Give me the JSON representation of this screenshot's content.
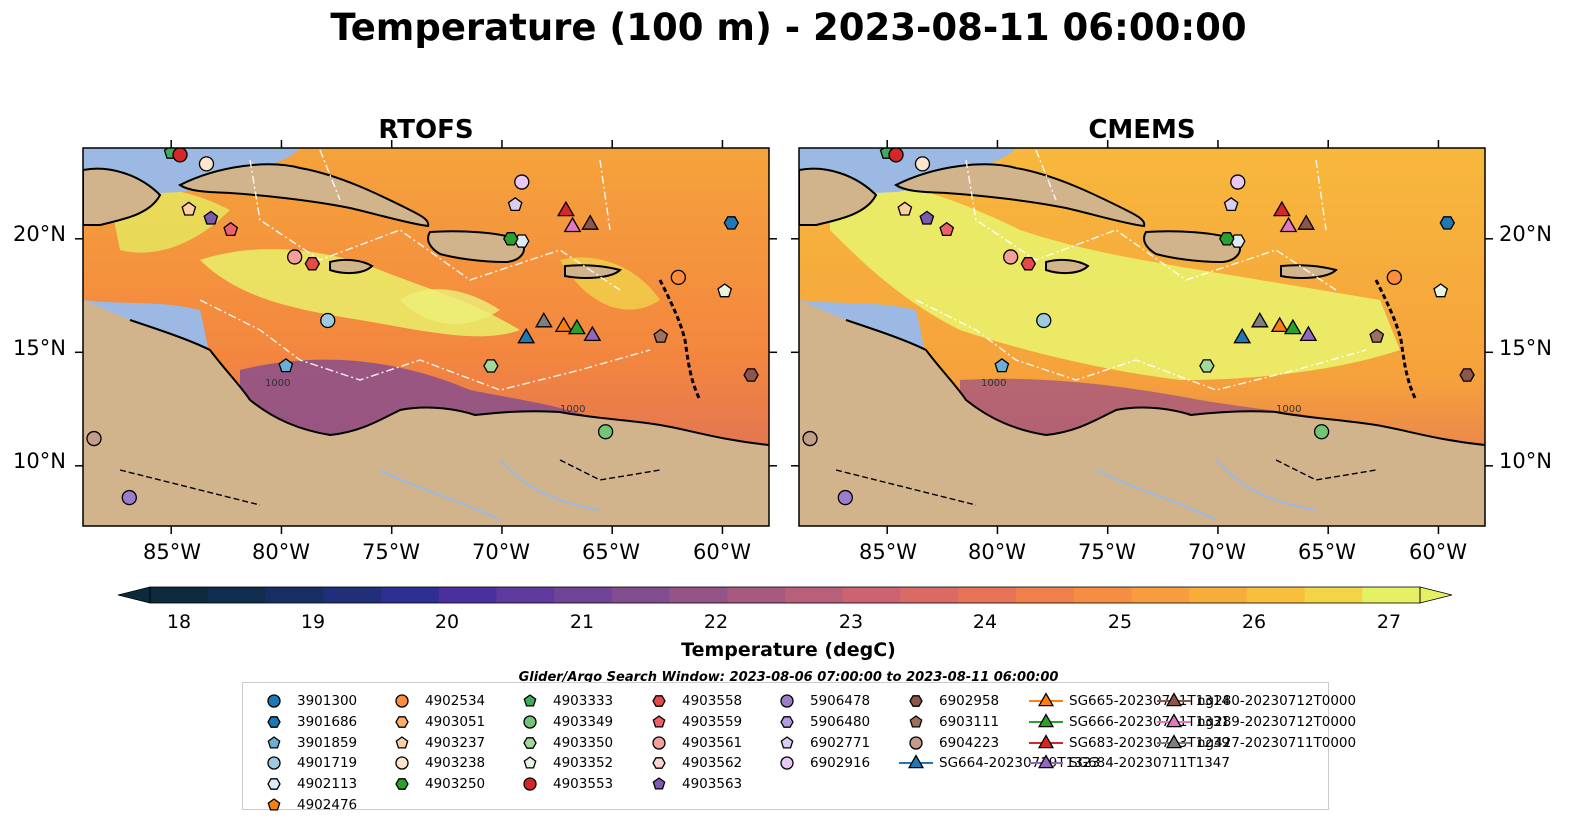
{
  "title": "Temperature (100 m) - 2023-08-11 06:00:00",
  "panels": [
    {
      "title": "RTOFS"
    },
    {
      "title": "CMEMS"
    }
  ],
  "axes": {
    "lon_ticks": [
      "85°W",
      "80°W",
      "75°W",
      "70°W",
      "65°W",
      "60°W"
    ],
    "lat_ticks": [
      "20°N",
      "15°N",
      "10°N"
    ]
  },
  "contour_labels": [
    "1000",
    "1000",
    "1000",
    "1000"
  ],
  "colorbar": {
    "label": "Temperature (degC)",
    "ticks": [
      "18",
      "19",
      "20",
      "21",
      "22",
      "23",
      "24",
      "25",
      "26",
      "27"
    ],
    "colors": [
      "#0c2a3c",
      "#102d4e",
      "#172e63",
      "#212f7a",
      "#2f2f93",
      "#4a2f9f",
      "#5e3a9e",
      "#6f4496",
      "#824d8e",
      "#945486",
      "#a65a7f",
      "#b85f7a",
      "#cb6470",
      "#dc6a64",
      "#e87358",
      "#f07f4c",
      "#f58d42",
      "#f79d3d",
      "#f8ad3a",
      "#f8bf3c",
      "#f4d447",
      "#e6f065"
    ]
  },
  "search_window": "Glider/Argo Search Window: 2023-08-06 07:00:00 to 2023-08-11 06:00:00",
  "colors": {
    "land": "#d2b48c",
    "shelf": "#9bb9e3"
  },
  "legend": [
    {
      "label": "3901300",
      "marker": "circle",
      "color": "#1f77b4"
    },
    {
      "label": "3901686",
      "marker": "hexagon",
      "color": "#1f77b4"
    },
    {
      "label": "3901859",
      "marker": "pentagon",
      "color": "#6baed6"
    },
    {
      "label": "4901719",
      "marker": "circle",
      "color": "#9ecae1"
    },
    {
      "label": "4902113",
      "marker": "hexagon",
      "color": "#deebf7"
    },
    {
      "label": "4902476",
      "marker": "pentagon",
      "color": "#ff7f0e"
    },
    {
      "label": "4902534",
      "marker": "circle",
      "color": "#fd8d3c"
    },
    {
      "label": "4903051",
      "marker": "hexagon",
      "color": "#fdae6b"
    },
    {
      "label": "4903237",
      "marker": "pentagon",
      "color": "#fdd0a2"
    },
    {
      "label": "4903238",
      "marker": "circle",
      "color": "#fee6ce"
    },
    {
      "label": "4903250",
      "marker": "hexagon",
      "color": "#2ca02c"
    },
    {
      "label": "4903333",
      "marker": "pentagon",
      "color": "#41ab5d"
    },
    {
      "label": "4903349",
      "marker": "circle",
      "color": "#74c476"
    },
    {
      "label": "4903350",
      "marker": "hexagon",
      "color": "#a1d99b"
    },
    {
      "label": "4903352",
      "marker": "pentagon",
      "color": "#e5f5e0"
    },
    {
      "label": "4903553",
      "marker": "circle",
      "color": "#d62728"
    },
    {
      "label": "4903558",
      "marker": "hexagon",
      "color": "#e6494a"
    },
    {
      "label": "4903559",
      "marker": "pentagon",
      "color": "#f0606a"
    },
    {
      "label": "4903561",
      "marker": "circle",
      "color": "#f4a09a"
    },
    {
      "label": "4903562",
      "marker": "hexagon",
      "color": "#fdd4d0"
    },
    {
      "label": "4903563",
      "marker": "pentagon",
      "color": "#7b5ab0"
    },
    {
      "label": "5906478",
      "marker": "circle",
      "color": "#9a7ecb"
    },
    {
      "label": "5906480",
      "marker": "hexagon",
      "color": "#b39de0"
    },
    {
      "label": "6902771",
      "marker": "pentagon",
      "color": "#d9cdf2"
    },
    {
      "label": "6902916",
      "marker": "circle",
      "color": "#e6c8f5"
    },
    {
      "label": "6902958",
      "marker": "hexagon",
      "color": "#8c564b"
    },
    {
      "label": "6903111",
      "marker": "pentagon",
      "color": "#a0705f"
    },
    {
      "label": "6904223",
      "marker": "circle",
      "color": "#c49c8c"
    },
    {
      "label": "SG664-20230719T1323",
      "marker": "triangle-line",
      "color": "#1f77b4"
    },
    {
      "label": "SG665-20230711T1314",
      "marker": "triangle-line",
      "color": "#ff7f0e"
    },
    {
      "label": "SG666-20230711T1331",
      "marker": "triangle-line",
      "color": "#2ca02c"
    },
    {
      "label": "SG683-20230713T1239",
      "marker": "triangle-line",
      "color": "#d62728"
    },
    {
      "label": "SG684-20230711T1347",
      "marker": "triangle-line",
      "color": "#9467bd"
    },
    {
      "label": "ng280-20230712T0000",
      "marker": "triangle-line",
      "color": "#8c564b"
    },
    {
      "label": "ng289-20230712T0000",
      "marker": "triangle-line",
      "color": "#e377c2"
    },
    {
      "label": "ng427-20230711T0000",
      "marker": "triangle-line",
      "color": "#7f7f7f"
    }
  ],
  "observations": [
    {
      "id": "3901686",
      "lon": -59.6,
      "lat": 20.7
    },
    {
      "id": "3901859",
      "lon": -79.8,
      "lat": 14.4
    },
    {
      "id": "4901719",
      "lon": -77.9,
      "lat": 16.4
    },
    {
      "id": "4902113",
      "lon": -69.1,
      "lat": 19.9
    },
    {
      "id": "4903250",
      "lon": -69.6,
      "lat": 20.0
    },
    {
      "id": "4903349",
      "lon": -65.3,
      "lat": 11.5
    },
    {
      "id": "4903350",
      "lon": -70.5,
      "lat": 14.4
    },
    {
      "id": "4903352",
      "lon": -59.9,
      "lat": 17.7
    },
    {
      "id": "4902534",
      "lon": -62.0,
      "lat": 18.3
    },
    {
      "id": "4903558",
      "lon": -78.6,
      "lat": 18.9
    },
    {
      "id": "4903559",
      "lon": -82.3,
      "lat": 20.4
    },
    {
      "id": "4903561",
      "lon": -79.4,
      "lat": 19.2
    },
    {
      "id": "4903563",
      "lon": -83.2,
      "lat": 20.9
    },
    {
      "id": "4903237",
      "lon": -84.2,
      "lat": 21.3
    },
    {
      "id": "4903238",
      "lon": -83.4,
      "lat": 23.3
    },
    {
      "id": "6902771",
      "lon": -69.4,
      "lat": 21.5
    },
    {
      "id": "6902916",
      "lon": -69.1,
      "lat": 22.5
    },
    {
      "id": "6902958",
      "lon": -58.7,
      "lat": 14.0
    },
    {
      "id": "6903111",
      "lon": -62.8,
      "lat": 15.7
    },
    {
      "id": "6904223",
      "lon": -88.5,
      "lat": 11.2
    },
    {
      "id": "5906478",
      "lon": -86.9,
      "lat": 8.6
    },
    {
      "id": "4903333",
      "lon": -85.0,
      "lat": 23.8
    },
    {
      "id": "4903553",
      "lon": -84.6,
      "lat": 23.7
    },
    {
      "id": "SG664-20230719T1323",
      "lon": -68.9,
      "lat": 15.7
    },
    {
      "id": "SG665-20230711T1314",
      "lon": -67.2,
      "lat": 16.2
    },
    {
      "id": "SG666-20230711T1331",
      "lon": -66.6,
      "lat": 16.1
    },
    {
      "id": "SG683-20230713T1239",
      "lon": -67.1,
      "lat": 21.3
    },
    {
      "id": "SG684-20230711T1347",
      "lon": -65.9,
      "lat": 15.8
    },
    {
      "id": "ng280-20230712T0000",
      "lon": -66.0,
      "lat": 20.7
    },
    {
      "id": "ng289-20230712T0000",
      "lon": -66.8,
      "lat": 20.6
    },
    {
      "id": "ng427-20230711T0000",
      "lon": -68.1,
      "lat": 16.4
    }
  ]
}
